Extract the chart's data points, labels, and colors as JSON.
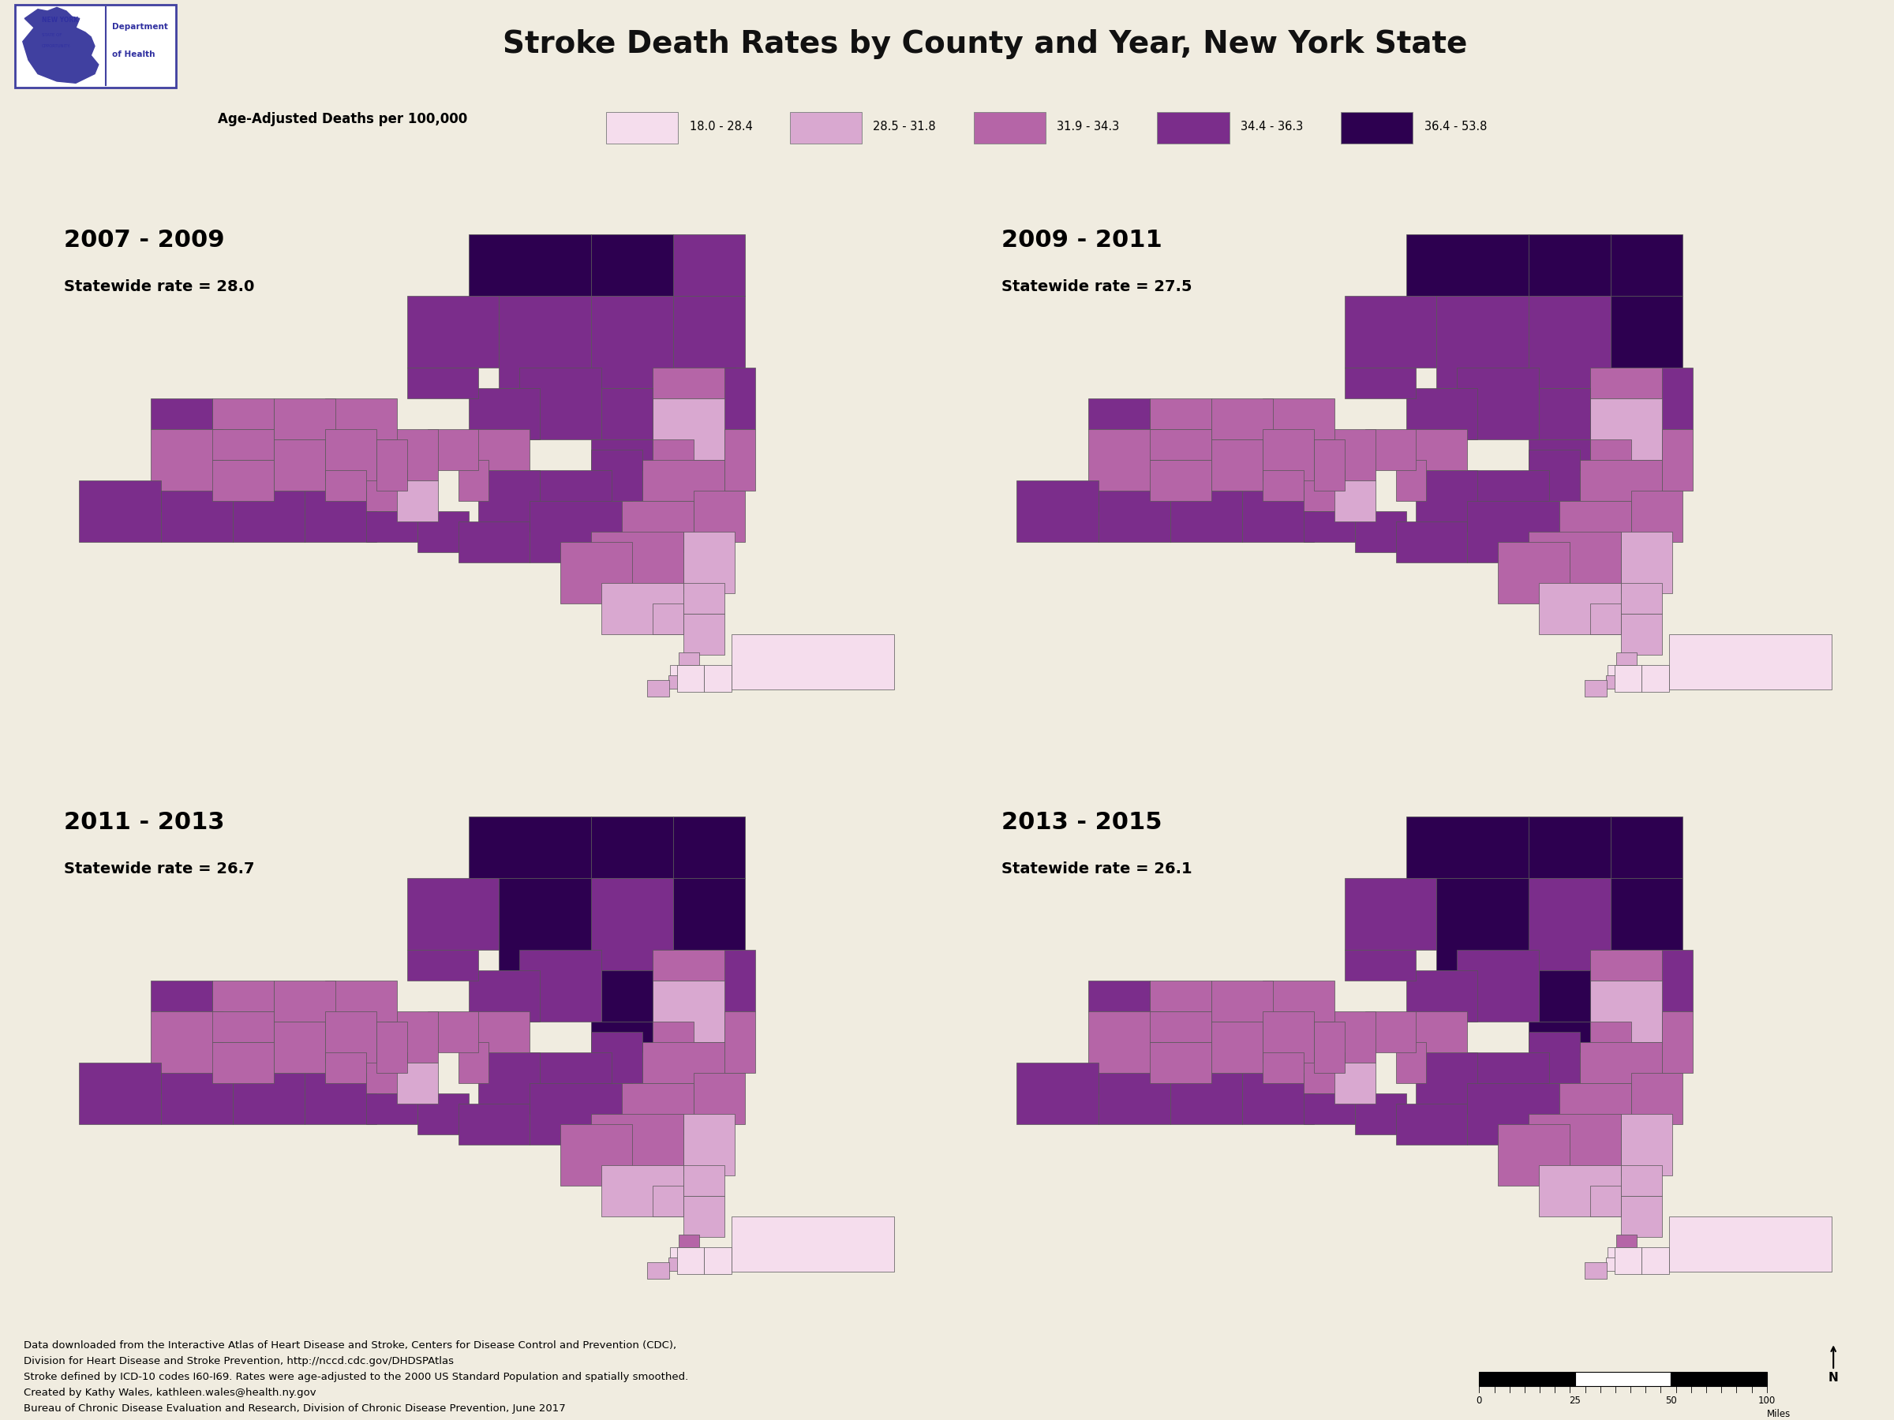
{
  "title": "Stroke Death Rates by County and Year, New York State",
  "background_color": "#f0ece0",
  "legend_title": "Age-Adjusted Deaths per 100,000",
  "legend_bins": [
    "18.0 - 28.4",
    "28.5 - 31.8",
    "31.9 - 34.3",
    "34.4 - 36.3",
    "36.4 - 53.8"
  ],
  "legend_colors": [
    "#f5dded",
    "#d9a8d0",
    "#b565a7",
    "#7b2d8b",
    "#2d0050"
  ],
  "panels": [
    {
      "title": "2007 - 2009",
      "statewide": "28.0"
    },
    {
      "title": "2009 - 2011",
      "statewide": "27.5"
    },
    {
      "title": "2011 - 2013",
      "statewide": "26.7"
    },
    {
      "title": "2013 - 2015",
      "statewide": "26.1"
    }
  ],
  "county_data": {
    "2007 - 2009": {
      "Albany": 3,
      "Allegany": 4,
      "Bronx": 2,
      "Broome": 4,
      "Cattaraugus": 4,
      "Cayuga": 3,
      "Chautauqua": 4,
      "Chemung": 4,
      "Chenango": 4,
      "Clinton": 4,
      "Columbia": 3,
      "Cortland": 3,
      "Delaware": 4,
      "Dutchess": 2,
      "Erie": 3,
      "Essex": 4,
      "Franklin": 5,
      "Fulton": 4,
      "Genesee": 3,
      "Greene": 3,
      "Hamilton": 4,
      "Herkimer": 4,
      "Jefferson": 4,
      "Kings": 2,
      "Lewis": 4,
      "Livingston": 3,
      "Madison": 3,
      "Monroe": 3,
      "Montgomery": 4,
      "Nassau": 1,
      "New York": 1,
      "Niagara": 4,
      "Oneida": 4,
      "Onondaga": 3,
      "Ontario": 3,
      "Orange": 2,
      "Orleans": 3,
      "Oswego": 4,
      "Otsego": 4,
      "Putnam": 2,
      "Queens": 1,
      "Rensselaer": 3,
      "Richmond": 2,
      "Rockland": 2,
      "St. Lawrence": 5,
      "Saratoga": 2,
      "Schenectady": 3,
      "Schoharie": 4,
      "Schuyler": 3,
      "Seneca": 3,
      "Steuben": 4,
      "Suffolk": 1,
      "Sullivan": 3,
      "Tioga": 4,
      "Tompkins": 2,
      "Ulster": 3,
      "Warren": 3,
      "Washington": 4,
      "Wayne": 3,
      "Westchester": 2,
      "Wyoming": 3,
      "Yates": 3
    },
    "2009 - 2011": {
      "Albany": 3,
      "Allegany": 4,
      "Bronx": 2,
      "Broome": 4,
      "Cattaraugus": 4,
      "Cayuga": 3,
      "Chautauqua": 4,
      "Chemung": 4,
      "Chenango": 4,
      "Clinton": 5,
      "Columbia": 3,
      "Cortland": 3,
      "Delaware": 4,
      "Dutchess": 2,
      "Erie": 3,
      "Essex": 5,
      "Franklin": 5,
      "Fulton": 4,
      "Genesee": 3,
      "Greene": 3,
      "Hamilton": 4,
      "Herkimer": 4,
      "Jefferson": 4,
      "Kings": 2,
      "Lewis": 4,
      "Livingston": 3,
      "Madison": 3,
      "Monroe": 3,
      "Montgomery": 4,
      "Nassau": 1,
      "New York": 1,
      "Niagara": 4,
      "Oneida": 4,
      "Onondaga": 3,
      "Ontario": 3,
      "Orange": 2,
      "Orleans": 3,
      "Oswego": 4,
      "Otsego": 4,
      "Putnam": 2,
      "Queens": 1,
      "Rensselaer": 3,
      "Richmond": 2,
      "Rockland": 2,
      "St. Lawrence": 5,
      "Saratoga": 2,
      "Schenectady": 3,
      "Schoharie": 4,
      "Schuyler": 3,
      "Seneca": 3,
      "Steuben": 4,
      "Suffolk": 1,
      "Sullivan": 3,
      "Tioga": 4,
      "Tompkins": 2,
      "Ulster": 3,
      "Warren": 3,
      "Washington": 4,
      "Wayne": 3,
      "Westchester": 2,
      "Wyoming": 3,
      "Yates": 3
    },
    "2011 - 2013": {
      "Albany": 3,
      "Allegany": 4,
      "Bronx": 3,
      "Broome": 4,
      "Cattaraugus": 4,
      "Cayuga": 3,
      "Chautauqua": 4,
      "Chemung": 4,
      "Chenango": 4,
      "Clinton": 5,
      "Columbia": 3,
      "Cortland": 3,
      "Delaware": 4,
      "Dutchess": 2,
      "Erie": 3,
      "Essex": 5,
      "Franklin": 5,
      "Fulton": 5,
      "Genesee": 3,
      "Greene": 3,
      "Hamilton": 4,
      "Herkimer": 4,
      "Jefferson": 4,
      "Kings": 2,
      "Lewis": 5,
      "Livingston": 3,
      "Madison": 3,
      "Monroe": 3,
      "Montgomery": 5,
      "Nassau": 1,
      "New York": 1,
      "Niagara": 4,
      "Oneida": 4,
      "Onondaga": 3,
      "Ontario": 3,
      "Orange": 2,
      "Orleans": 3,
      "Oswego": 4,
      "Otsego": 4,
      "Putnam": 2,
      "Queens": 1,
      "Rensselaer": 3,
      "Richmond": 2,
      "Rockland": 2,
      "St. Lawrence": 5,
      "Saratoga": 2,
      "Schenectady": 3,
      "Schoharie": 4,
      "Schuyler": 3,
      "Seneca": 3,
      "Steuben": 4,
      "Suffolk": 1,
      "Sullivan": 3,
      "Tioga": 4,
      "Tompkins": 2,
      "Ulster": 3,
      "Warren": 3,
      "Washington": 4,
      "Wayne": 3,
      "Westchester": 2,
      "Wyoming": 3,
      "Yates": 3
    },
    "2013 - 2015": {
      "Albany": 3,
      "Allegany": 4,
      "Bronx": 3,
      "Broome": 4,
      "Cattaraugus": 4,
      "Cayuga": 3,
      "Chautauqua": 4,
      "Chemung": 4,
      "Chenango": 4,
      "Clinton": 5,
      "Columbia": 3,
      "Cortland": 3,
      "Delaware": 4,
      "Dutchess": 2,
      "Erie": 3,
      "Essex": 5,
      "Franklin": 5,
      "Fulton": 5,
      "Genesee": 3,
      "Greene": 3,
      "Hamilton": 4,
      "Herkimer": 4,
      "Jefferson": 4,
      "Kings": 1,
      "Lewis": 5,
      "Livingston": 3,
      "Madison": 3,
      "Monroe": 3,
      "Montgomery": 5,
      "Nassau": 1,
      "New York": 1,
      "Niagara": 4,
      "Oneida": 4,
      "Onondaga": 3,
      "Ontario": 3,
      "Orange": 2,
      "Orleans": 3,
      "Oswego": 4,
      "Otsego": 4,
      "Putnam": 2,
      "Queens": 1,
      "Rensselaer": 3,
      "Richmond": 2,
      "Rockland": 2,
      "St. Lawrence": 5,
      "Saratoga": 2,
      "Schenectady": 3,
      "Schoharie": 4,
      "Schuyler": 3,
      "Seneca": 3,
      "Steuben": 4,
      "Suffolk": 1,
      "Sullivan": 3,
      "Tioga": 4,
      "Tompkins": 2,
      "Ulster": 3,
      "Warren": 3,
      "Washington": 4,
      "Wayne": 3,
      "Westchester": 2,
      "Wyoming": 3,
      "Yates": 3
    }
  },
  "footnote_lines": [
    "Data downloaded from the Interactive Atlas of Heart Disease and Stroke, Centers for Disease Control and Prevention (CDC),",
    "Division for Heart Disease and Stroke Prevention, http://nccd.cdc.gov/DHDSPAtlas",
    "Stroke defined by ICD-10 codes I60-I69. Rates were age-adjusted to the 2000 US Standard Population and spatially smoothed.",
    "Created by Kathy Wales, kathleen.wales@health.ny.gov",
    "Bureau of Chronic Disease Evaluation and Research, Division of Chronic Disease Prevention, June 2017"
  ]
}
